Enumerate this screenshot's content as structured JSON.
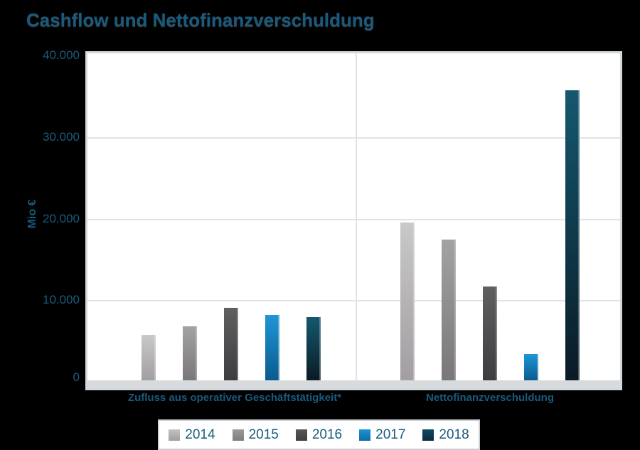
{
  "title": "Cashflow und Nettofinanzverschuldung",
  "y_axis": {
    "title": "Mio €",
    "ticks": [
      "40.000",
      "30.000",
      "20.000",
      "10.000",
      "0"
    ]
  },
  "chart_data": {
    "type": "bar",
    "title": "Cashflow und Nettofinanzverschuldung",
    "ylabel": "Mio €",
    "ylim": [
      0,
      40000
    ],
    "grid": "horizontal",
    "legend_position": "bottom",
    "categories": [
      "Zufluss aus operativer Geschäftstätigkeit*",
      "Nettofinanzverschuldung"
    ],
    "category_keys": [
      "operativ",
      "nettofinanz"
    ],
    "series": [
      {
        "name": "2014",
        "values": [
          5700,
          19500
        ],
        "color_top": "#c9c9c9",
        "color_bottom": "#a29da1",
        "legend_color_top": "#c2c2c2",
        "legend_color_bottom": "#9f9f9f"
      },
      {
        "name": "2015",
        "values": [
          6700,
          17400
        ],
        "color_top": "#a3a3a3",
        "color_bottom": "#7a767a",
        "legend_color_top": "#9b9b9b",
        "legend_color_bottom": "#7e7e7e"
      },
      {
        "name": "2016",
        "values": [
          9000,
          11600
        ],
        "color_top": "#606060",
        "color_bottom": "#3d3d41",
        "legend_color_top": "#575757",
        "legend_color_bottom": "#3f3f3f"
      },
      {
        "name": "2017",
        "values": [
          8100,
          3300
        ],
        "color_top": "#1f96d6",
        "color_bottom": "#0a5a8c",
        "legend_color_top": "#1b94d4",
        "legend_color_bottom": "#0e6ca6"
      },
      {
        "name": "2018",
        "values": [
          7900,
          35700
        ],
        "color_top": "#15586f",
        "color_bottom": "#0a1b25",
        "legend_color_top": "#0e4a62",
        "legend_color_bottom": "#092c3d"
      }
    ]
  },
  "colors": {
    "background": "#000000",
    "card": "#ffffff",
    "card_border": "#d3d8dc",
    "gridline": "#e0e4e7",
    "axis_strip": "#d8dbde",
    "text": "#195b7e"
  }
}
